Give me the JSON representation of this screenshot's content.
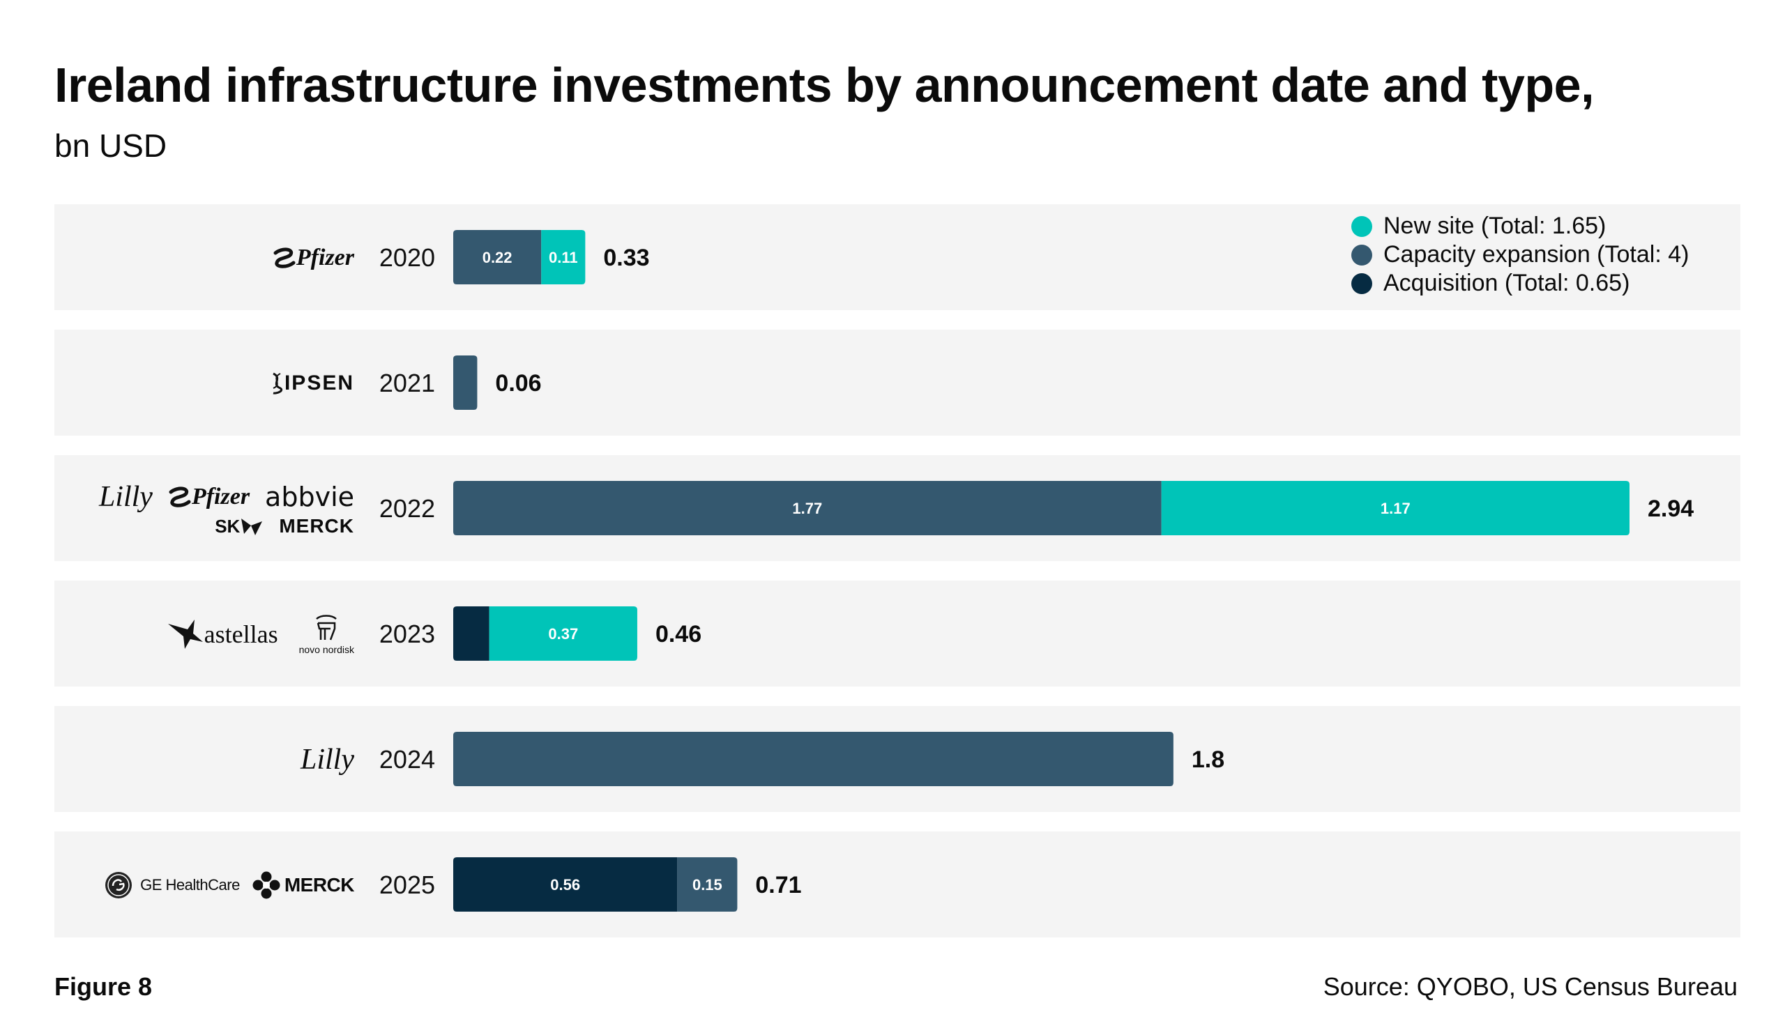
{
  "title": "Ireland infrastructure investments by announcement date and type,",
  "subtitle": "bn USD",
  "footer": {
    "figure": "Figure 8",
    "source": "Source: QYOBO, US Census Bureau"
  },
  "colors": {
    "new_site": "#00c4b8",
    "capacity_expansion": "#34586f",
    "acquisition": "#062b42",
    "row_background": "#f4f4f4"
  },
  "legend": [
    {
      "label": "New site (Total: 1.65)",
      "color": "#00c4b8"
    },
    {
      "label": "Capacity expansion (Total: 4)",
      "color": "#34586f"
    },
    {
      "label": "Acquisition (Total: 0.65)",
      "color": "#062b42"
    }
  ],
  "logos": [
    {
      "year": "2020",
      "lines": [
        [
          {
            "name": "pfizer",
            "text": "Pfizer"
          }
        ]
      ]
    },
    {
      "year": "2021",
      "lines": [
        [
          {
            "name": "ipsen",
            "text": "IPSEN"
          }
        ]
      ]
    },
    {
      "year": "2022",
      "lines": [
        [
          {
            "name": "lilly",
            "text": "Lilly"
          },
          {
            "name": "pfizer",
            "text": "Pfizer"
          },
          {
            "name": "abbvie",
            "text": "abbvie"
          }
        ],
        [
          {
            "name": "sk",
            "text": "SK"
          },
          {
            "name": "merck-stylized",
            "text": "MERCK"
          }
        ]
      ]
    },
    {
      "year": "2023",
      "lines": [
        [
          {
            "name": "astellas",
            "text": "astellas"
          },
          {
            "name": "novo-nordisk",
            "text": "novo nordisk"
          }
        ]
      ]
    },
    {
      "year": "2024",
      "lines": [
        [
          {
            "name": "lilly",
            "text": "Lilly"
          }
        ]
      ]
    },
    {
      "year": "2025",
      "lines": [
        [
          {
            "name": "ge-healthcare",
            "text": "GE HealthCare"
          },
          {
            "name": "merck",
            "text": "MERCK"
          }
        ]
      ]
    }
  ],
  "chart_data": {
    "type": "bar",
    "orientation": "horizontal",
    "stacked": true,
    "title": "Ireland infrastructure investments by announcement date and type,",
    "subtitle": "bn USD",
    "categories": [
      "2020",
      "2021",
      "2022",
      "2023",
      "2024",
      "2025"
    ],
    "series": [
      {
        "name": "Acquisition",
        "values": [
          0,
          0,
          0,
          0.09,
          0,
          0.56
        ],
        "labels": [
          "",
          "",
          "",
          "",
          "",
          "0.56"
        ]
      },
      {
        "name": "Capacity expansion",
        "values": [
          0.22,
          0.06,
          1.77,
          0,
          1.8,
          0.15
        ],
        "labels": [
          "0.22",
          "",
          "1.77",
          "",
          "",
          "0.15"
        ]
      },
      {
        "name": "New site",
        "values": [
          0.11,
          0,
          1.17,
          0.37,
          0,
          0
        ],
        "labels": [
          "0.11",
          "",
          "1.17",
          "0.37",
          "",
          ""
        ]
      }
    ],
    "totals": [
      "0.33",
      "0.06",
      "2.94",
      "0.46",
      "1.8",
      "0.71"
    ],
    "xlim": [
      0,
      2.94
    ],
    "grid": false,
    "legend_position": "top-right"
  }
}
